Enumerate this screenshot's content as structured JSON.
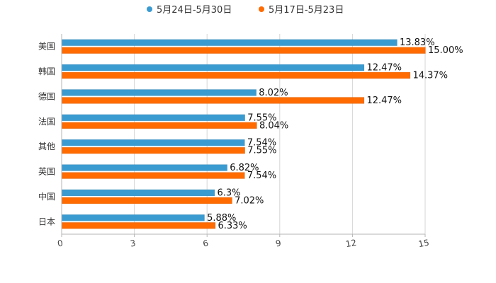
{
  "chart_data": {
    "type": "bar",
    "orientation": "horizontal",
    "title": "",
    "xlabel": "",
    "ylabel": "",
    "xlim": [
      0,
      15
    ],
    "x_ticks": [
      0,
      3,
      6,
      9,
      12,
      15
    ],
    "grid": true,
    "legend_position": "top-center",
    "categories": [
      "美国",
      "韩国",
      "德国",
      "法国",
      "其他",
      "英国",
      "中国",
      "日本"
    ],
    "series": [
      {
        "name": "5月24日-5月30日",
        "color": "#3a9bd1",
        "values": [
          13.83,
          12.47,
          8.02,
          7.55,
          7.54,
          6.82,
          6.3,
          5.88
        ],
        "labels": [
          "13.83%",
          "12.47%",
          "8.02%",
          "7.55%",
          "7.54%",
          "6.82%",
          "6.3%",
          "5.88%"
        ]
      },
      {
        "name": "5月17日-5月23日",
        "color": "#ff6b00",
        "values": [
          15.0,
          14.37,
          12.47,
          8.04,
          7.55,
          7.54,
          7.02,
          6.33
        ],
        "labels": [
          "15.00%",
          "14.37%",
          "12.47%",
          "8.04%",
          "7.55%",
          "7.54%",
          "7.02%",
          "6.33%"
        ]
      }
    ]
  }
}
